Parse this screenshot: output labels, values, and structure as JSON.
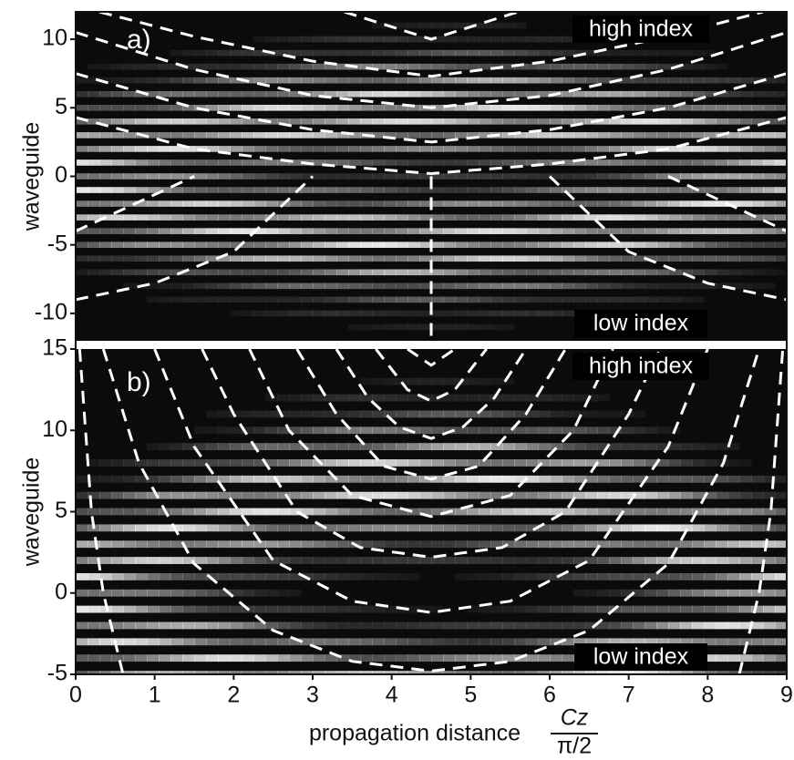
{
  "chart_data": [
    {
      "type": "line",
      "panel_label": "a)",
      "ylabel": "waveguide",
      "annotations": [
        "high index",
        "low index"
      ],
      "xlim": [
        0,
        9
      ],
      "ylim": [
        -12,
        12
      ],
      "yticks": [
        -10,
        -5,
        0,
        5,
        10
      ],
      "color": "#ffffff",
      "dashed": true,
      "series": [
        {
          "x": [
            3.4,
            4.5,
            5.6
          ],
          "values": [
            12,
            10,
            12
          ]
        },
        {
          "x": [
            0.3,
            1.5,
            3,
            4.5,
            6,
            7.5,
            8.7
          ],
          "values": [
            12,
            10.2,
            8.4,
            7.3,
            8.4,
            10.2,
            12
          ]
        },
        {
          "x": [
            0,
            1.5,
            3,
            4.5,
            6,
            7.5,
            9
          ],
          "values": [
            10.5,
            7.8,
            5.9,
            5,
            5.9,
            7.8,
            10.5
          ]
        },
        {
          "x": [
            0,
            1.5,
            3,
            4.5,
            6,
            7.5,
            9
          ],
          "values": [
            7.5,
            5,
            3.4,
            2.5,
            3.4,
            5,
            7.5
          ]
        },
        {
          "x": [
            0,
            1.5,
            3,
            4.5,
            6,
            7.5,
            9
          ],
          "values": [
            4.3,
            2,
            0.9,
            0.2,
            0.9,
            2,
            4.3
          ]
        },
        {
          "x": [
            0,
            0.75,
            1.5
          ],
          "values": [
            -4,
            -2,
            0
          ]
        },
        {
          "x": [
            7.5,
            8.25,
            9
          ],
          "values": [
            0,
            -2,
            -4
          ]
        },
        {
          "x": [
            0,
            1,
            2,
            3
          ],
          "values": [
            -9,
            -7.8,
            -5.5,
            0
          ]
        },
        {
          "x": [
            6,
            7,
            8,
            9
          ],
          "values": [
            0,
            -5.5,
            -7.8,
            -9
          ]
        },
        {
          "x": [
            4.5,
            4.5
          ],
          "values": [
            0,
            -12
          ]
        }
      ]
    },
    {
      "type": "line",
      "panel_label": "b)",
      "ylabel": "waveguide",
      "annotations": [
        "high index",
        "low index"
      ],
      "xlabel": "propagation distance",
      "xlabel_unit": {
        "numerator": "Cz",
        "denominator": "π/2"
      },
      "xlim": [
        0,
        9
      ],
      "xticks": [
        0,
        1,
        2,
        3,
        4,
        5,
        6,
        7,
        8,
        9
      ],
      "ylim": [
        -5,
        15
      ],
      "yticks": [
        -5,
        0,
        5,
        10,
        15
      ],
      "color": "#ffffff",
      "dashed": true,
      "series": [
        {
          "x": [
            0.05,
            0.2,
            0.35,
            0.6
          ],
          "values": [
            15,
            5,
            0,
            -5
          ]
        },
        {
          "x": [
            8.4,
            8.65,
            8.8,
            8.95
          ],
          "values": [
            -5,
            0,
            5,
            15
          ]
        },
        {
          "x": [
            0.35,
            0.8,
            1.5,
            2.5,
            3.5,
            4.5,
            5.5,
            6.5,
            7.5,
            8.2,
            8.65
          ],
          "values": [
            15,
            8,
            1.8,
            -2.3,
            -4.2,
            -4.8,
            -4.2,
            -2.3,
            1.8,
            8,
            15
          ]
        },
        {
          "x": [
            1,
            1.5,
            2.5,
            3.5,
            4.5,
            5.5,
            6.5,
            7.5,
            8
          ],
          "values": [
            15,
            9,
            2,
            -0.5,
            -1.2,
            -0.5,
            2,
            9,
            15
          ]
        },
        {
          "x": [
            1.6,
            2,
            2.8,
            3.6,
            4.5,
            5.4,
            6.2,
            7,
            7.4
          ],
          "values": [
            15,
            11,
            5,
            2.8,
            2.2,
            2.8,
            5,
            11,
            15
          ]
        },
        {
          "x": [
            2.2,
            2.7,
            3.5,
            4.5,
            5.5,
            6.3,
            6.8
          ],
          "values": [
            15,
            10,
            6,
            4.7,
            6,
            10,
            15
          ]
        },
        {
          "x": [
            2.8,
            3.3,
            3.9,
            4.5,
            5.1,
            5.7,
            6.2
          ],
          "values": [
            15,
            11,
            7.8,
            7,
            7.8,
            11,
            15
          ]
        },
        {
          "x": [
            3.3,
            3.7,
            4.1,
            4.5,
            4.9,
            5.3,
            5.7
          ],
          "values": [
            15,
            12,
            10.2,
            9.5,
            10.2,
            12,
            15
          ]
        },
        {
          "x": [
            3.8,
            4.2,
            4.5,
            4.8,
            5.2
          ],
          "values": [
            15,
            12.5,
            11.8,
            12.5,
            15
          ]
        },
        {
          "x": [
            4.2,
            4.5,
            4.8
          ],
          "values": [
            15,
            14,
            15
          ]
        }
      ]
    }
  ]
}
